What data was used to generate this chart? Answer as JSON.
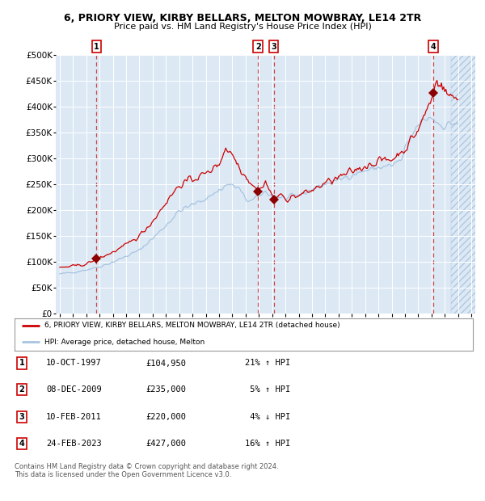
{
  "title_line1": "6, PRIORY VIEW, KIRBY BELLARS, MELTON MOWBRAY, LE14 2TR",
  "title_line2": "Price paid vs. HM Land Registry's House Price Index (HPI)",
  "fig_bg_color": "#ffffff",
  "plot_bg_color": "#dce9f5",
  "hpi_line_color": "#a8c4e0",
  "price_line_color": "#cc0000",
  "marker_color": "#8b0000",
  "dashed_line_color": "#cc3333",
  "ylim": [
    0,
    500000
  ],
  "yticks": [
    0,
    50000,
    100000,
    150000,
    200000,
    250000,
    300000,
    350000,
    400000,
    450000,
    500000
  ],
  "ytick_labels": [
    "£0",
    "£50K",
    "£100K",
    "£150K",
    "£200K",
    "£250K",
    "£300K",
    "£350K",
    "£400K",
    "£450K",
    "£500K"
  ],
  "xlim_start": 1994.7,
  "xlim_end": 2026.3,
  "sale_dates_decimal": [
    1997.77,
    2009.94,
    2011.11,
    2023.15
  ],
  "sale_prices": [
    104950,
    235000,
    220000,
    427000
  ],
  "sale_labels": [
    "1",
    "2",
    "3",
    "4"
  ],
  "legend_label_price": "6, PRIORY VIEW, KIRBY BELLARS, MELTON MOWBRAY, LE14 2TR (detached house)",
  "legend_label_hpi": "HPI: Average price, detached house, Melton",
  "table_data": [
    [
      "1",
      "10-OCT-1997",
      "£104,950",
      "21% ↑ HPI"
    ],
    [
      "2",
      "08-DEC-2009",
      "£235,000",
      " 5% ↑ HPI"
    ],
    [
      "3",
      "10-FEB-2011",
      "£220,000",
      " 4% ↓ HPI"
    ],
    [
      "4",
      "24-FEB-2023",
      "£427,000",
      "16% ↑ HPI"
    ]
  ],
  "footnote_line1": "Contains HM Land Registry data © Crown copyright and database right 2024.",
  "footnote_line2": "This data is licensed under the Open Government Licence v3.0.",
  "hatch_region_start": 2024.5,
  "grid_color": "#ffffff"
}
